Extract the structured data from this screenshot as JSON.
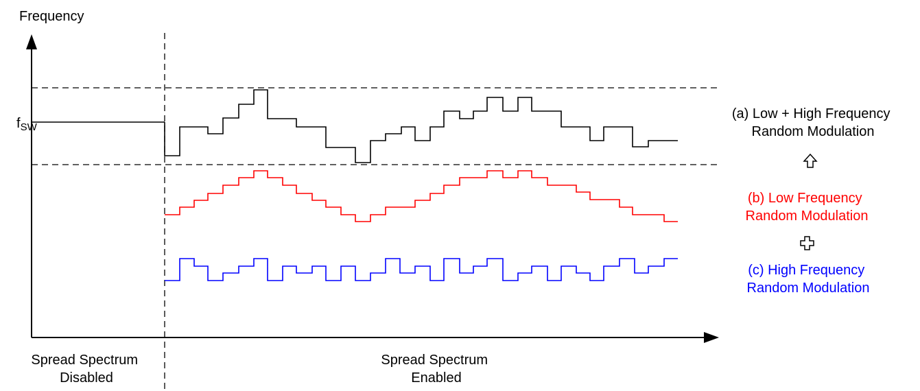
{
  "diagram": {
    "y_axis_label": "Frequency",
    "fsw_label": {
      "main": "f",
      "sub": "SW"
    },
    "region_disabled": [
      "Spread Spectrum",
      "Disabled"
    ],
    "region_enabled": [
      "Spread Spectrum",
      "Enabled"
    ],
    "legend": {
      "combined": {
        "lines": [
          "(a) Low + High Frequency",
          "Random Modulation"
        ],
        "color": "#000000"
      },
      "low": {
        "lines": [
          "(b) Low Frequency",
          "Random Modulation"
        ],
        "color": "#ff0000"
      },
      "high": {
        "lines": [
          "(c) High Frequency",
          "Random Modulation"
        ],
        "color": "#0000ff"
      },
      "arrow_icon": "hollow-up-arrow-icon",
      "plus_icon": "hollow-plus-icon"
    }
  }
}
